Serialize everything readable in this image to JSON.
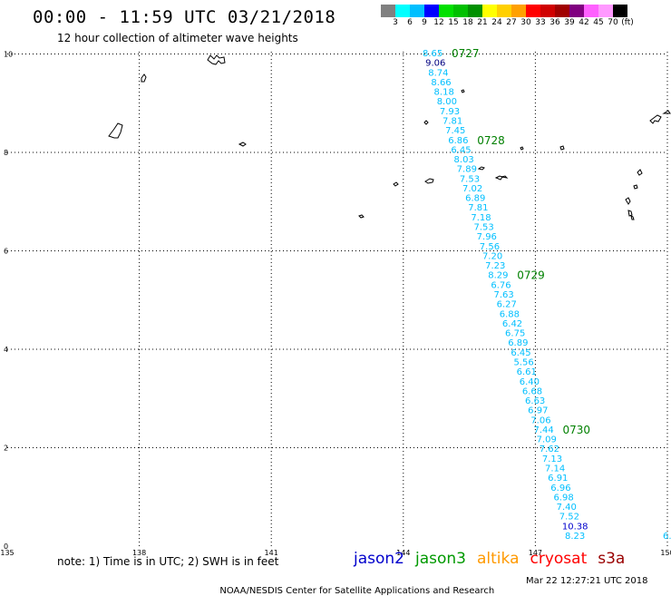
{
  "title": "00:00 - 11:59 UTC 03/21/2018",
  "subtitle": "12 hour collection of altimeter wave heights",
  "color_scale": {
    "colors": [
      "#808080",
      "#00ffff",
      "#00bfff",
      "#0000ff",
      "#00e000",
      "#00c000",
      "#009000",
      "#ffff00",
      "#ffd000",
      "#ffa000",
      "#ff0000",
      "#d00000",
      "#a00000",
      "#800080",
      "#ff60ff",
      "#ff99ff",
      "#000000"
    ],
    "labels": [
      "3",
      "6",
      "9",
      "12",
      "15",
      "18",
      "21",
      "24",
      "27",
      "30",
      "33",
      "36",
      "39",
      "42",
      "45",
      "70",
      "(ft)"
    ]
  },
  "axes": {
    "x_ticks": [
      "135",
      "138",
      "141",
      "144",
      "147",
      "150"
    ],
    "y_ticks": [
      "0",
      "2",
      "4",
      "6",
      "8",
      "10"
    ]
  },
  "track": {
    "heights_ft": [
      "8.65",
      "9.06",
      "8.74",
      "8.66",
      "8.18",
      "8.00",
      "7.93",
      "7.81",
      "7.45",
      "6.86",
      "6.45",
      "8.03",
      "7.89",
      "7.53",
      "7.02",
      "6.89",
      "7.81",
      "7.18",
      "7.53",
      "7.96",
      "7.56",
      "7.20",
      "7.23",
      "8.29",
      "6.76",
      "7.63",
      "6.27",
      "6.88",
      "6.42",
      "6.75",
      "6.89",
      "6.45",
      "5.56",
      "6.61",
      "6.40",
      "6.68",
      "6.63",
      "6.97",
      "7.06",
      "7.44",
      "7.09",
      "7.62",
      "7.13",
      "7.14",
      "6.91",
      "6.96",
      "6.98",
      "7.40",
      "7.52",
      "10.38",
      "8.23"
    ],
    "colors": [
      "#00bfff",
      "#000080",
      "#00bfff",
      "#00bfff",
      "#00bfff",
      "#00bfff",
      "#00bfff",
      "#00bfff",
      "#00bfff",
      "#00bfff",
      "#00bfff",
      "#00bfff",
      "#00bfff",
      "#00bfff",
      "#00bfff",
      "#00bfff",
      "#00bfff",
      "#00bfff",
      "#00bfff",
      "#00bfff",
      "#00bfff",
      "#00bfff",
      "#00bfff",
      "#00bfff",
      "#00bfff",
      "#00bfff",
      "#00bfff",
      "#00bfff",
      "#00bfff",
      "#00bfff",
      "#00bfff",
      "#00bfff",
      "#00bfff",
      "#00bfff",
      "#00bfff",
      "#00bfff",
      "#00bfff",
      "#00bfff",
      "#00bfff",
      "#00bfff",
      "#00bfff",
      "#00bfff",
      "#00bfff",
      "#00bfff",
      "#00bfff",
      "#00bfff",
      "#00bfff",
      "#00bfff",
      "#00bfff",
      "#0000cc",
      "#00bfff"
    ],
    "time_labels": [
      "0727",
      "0728",
      "0729",
      "0730"
    ],
    "time_label_color": "#008000",
    "edge_label": "6."
  },
  "note": "note: 1) Time is in UTC; 2) SWH is in feet",
  "satellites": [
    {
      "name": "jason2",
      "color": "#0000cc"
    },
    {
      "name": "jason3",
      "color": "#009900"
    },
    {
      "name": "altika",
      "color": "#ff9900"
    },
    {
      "name": "cryosat",
      "color": "#ff0000"
    },
    {
      "name": "s3a",
      "color": "#990000"
    }
  ],
  "footer": "NOAA/NESDIS Center for Satellite Applications and Research",
  "timestamp": "Mar 22 12:27:21 UTC 2018"
}
